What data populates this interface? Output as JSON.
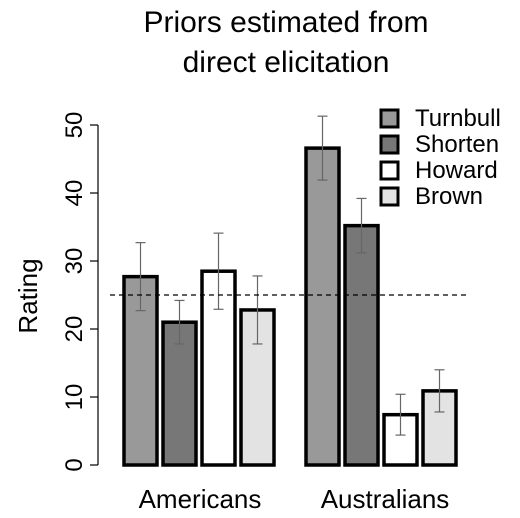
{
  "chart_data": {
    "type": "bar",
    "title_lines": [
      "Priors estimated from",
      "direct elicitation"
    ],
    "xlabel": "",
    "ylabel": "Rating",
    "ylim": [
      0,
      50
    ],
    "yticks": [
      "0",
      "10",
      "20",
      "30",
      "40",
      "50"
    ],
    "categories": [
      "Americans",
      "Australians"
    ],
    "series": [
      {
        "name": "Turnbull",
        "color": "#999999",
        "values": [
          27.7,
          46.6
        ],
        "error": [
          5.0,
          4.7
        ]
      },
      {
        "name": "Shorten",
        "color": "#777777",
        "values": [
          21.0,
          35.2
        ],
        "error": [
          3.2,
          4.0
        ]
      },
      {
        "name": "Howard",
        "color": "#ffffff",
        "values": [
          28.5,
          7.4
        ],
        "error": [
          5.6,
          3.0
        ]
      },
      {
        "name": "Brown",
        "color": "#e3e3e3",
        "values": [
          22.8,
          10.9
        ],
        "error": [
          5.0,
          3.1
        ]
      }
    ],
    "reference_line": {
      "value": 25,
      "style": "dashed"
    },
    "legend_position": "top-right",
    "grid": false
  }
}
